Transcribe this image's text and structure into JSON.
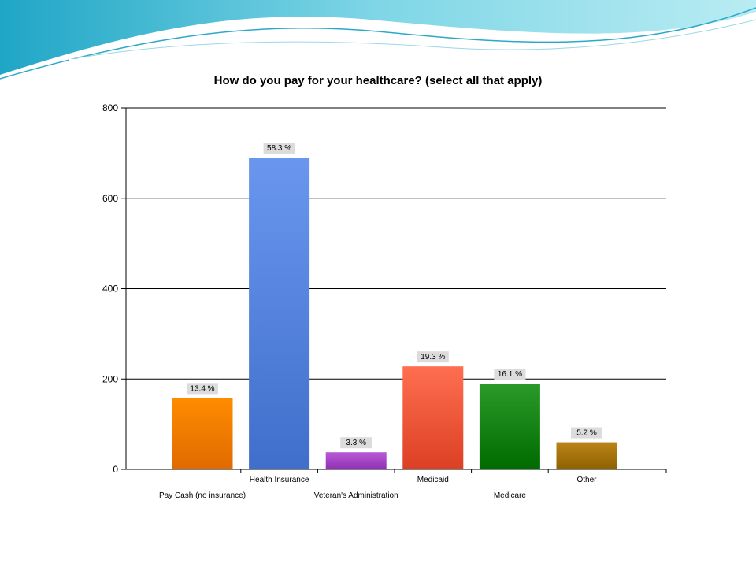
{
  "colors": {
    "wave_dark": "#2aa9c9",
    "wave_light": "#8fdcea",
    "grid": "#000000"
  },
  "chart_data": {
    "type": "bar",
    "title": "How do you pay for your healthcare? (select all that apply)",
    "xlabel": "",
    "ylabel": "",
    "ylim": [
      0,
      800
    ],
    "yticks": [
      "0",
      "200",
      "400",
      "600",
      "800"
    ],
    "grid": true,
    "legend": "none",
    "categories": [
      "Pay Cash (no insurance)",
      "Health Insurance",
      "Veteran's Administration",
      "Medicaid",
      "Medicare",
      "Other"
    ],
    "values": [
      158,
      690,
      38,
      228,
      190,
      60
    ],
    "data_labels": [
      "13.4 %",
      "58.3 %",
      "3.3 %",
      "19.3 %",
      "16.1 %",
      "5.2 %"
    ],
    "bar_colors": [
      [
        "#ff8c00",
        "#e06a00"
      ],
      [
        "#6a96ee",
        "#3f6fcb"
      ],
      [
        "#b85ad8",
        "#8f2fb3"
      ],
      [
        "#ff6e50",
        "#dc4024"
      ],
      [
        "#2a9a2a",
        "#006b00"
      ],
      [
        "#bb8418",
        "#8e6200"
      ]
    ]
  }
}
